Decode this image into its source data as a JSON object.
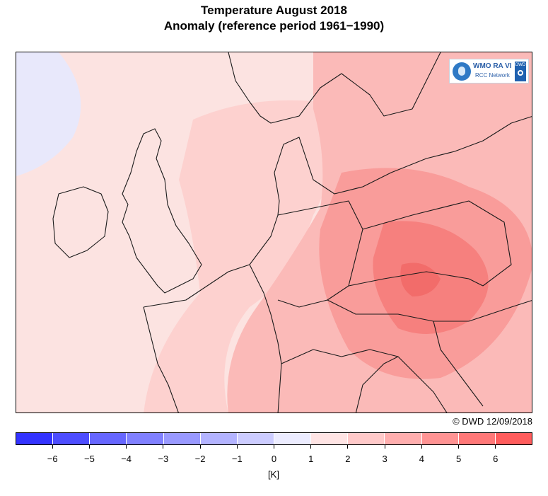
{
  "title_line1": "Temperature August 2018",
  "title_line2": "Anomaly (reference period 1961−1990)",
  "logo": {
    "line1": "WMO RA VI",
    "line2": "RCC Network",
    "badge": "DWD",
    "icon": "wmo-globe-icon"
  },
  "credit": "© DWD 12/09/2018",
  "colorbar": {
    "unit": "[K]",
    "min": -7,
    "max": 7,
    "tick_labels": [
      "−6",
      "−5",
      "−4",
      "−3",
      "−2",
      "−1",
      "0",
      "1",
      "2",
      "3",
      "4",
      "5",
      "6"
    ],
    "tick_values": [
      -6,
      -5,
      -4,
      -3,
      -2,
      -1,
      0,
      1,
      2,
      3,
      4,
      5,
      6
    ],
    "colors": [
      "#3333ff",
      "#4d4dff",
      "#6666ff",
      "#8080ff",
      "#9999ff",
      "#b3b3ff",
      "#ccccff",
      "#ececff",
      "#ffe4e4",
      "#ffc9c9",
      "#ffaeae",
      "#ff9393",
      "#ff7878",
      "#ff5c5c"
    ]
  }
}
